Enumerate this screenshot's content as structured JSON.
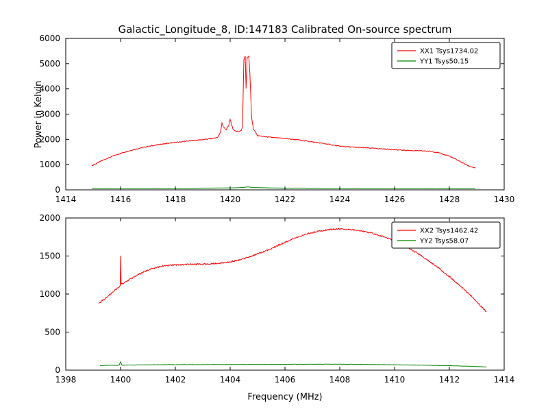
{
  "title": "Galactic_Longitude_8, ID:147183 Calibrated On-source spectrum",
  "xlabel": "Frequency (MHz)",
  "ylabel": "Power in Kelvin",
  "colors": {
    "background": "#ffffff",
    "axis": "#000000",
    "xx": "#ff0000",
    "yy": "#008000"
  },
  "chart_data": [
    {
      "type": "line",
      "position": "top",
      "xlim": [
        1414,
        1430
      ],
      "ylim": [
        0,
        6000
      ],
      "xticks": [
        1414,
        1416,
        1418,
        1420,
        1422,
        1424,
        1426,
        1428,
        1430
      ],
      "yticks": [
        0,
        1000,
        2000,
        3000,
        4000,
        5000,
        6000
      ],
      "legend_position": "upper right",
      "grid": false,
      "series": [
        {
          "name": "XX1 Tsys1734.02",
          "color": "#ff0000",
          "noise": 16,
          "points": [
            [
              1414.95,
              950
            ],
            [
              1415.3,
              1150
            ],
            [
              1415.7,
              1330
            ],
            [
              1416.1,
              1480
            ],
            [
              1416.5,
              1600
            ],
            [
              1417.0,
              1720
            ],
            [
              1417.5,
              1810
            ],
            [
              1418.0,
              1880
            ],
            [
              1418.5,
              1940
            ],
            [
              1419.0,
              1990
            ],
            [
              1419.3,
              2030
            ],
            [
              1419.55,
              2080
            ],
            [
              1419.65,
              2300
            ],
            [
              1419.7,
              2650
            ],
            [
              1419.75,
              2500
            ],
            [
              1419.85,
              2380
            ],
            [
              1419.95,
              2550
            ],
            [
              1420.0,
              2800
            ],
            [
              1420.05,
              2600
            ],
            [
              1420.1,
              2400
            ],
            [
              1420.2,
              2330
            ],
            [
              1420.3,
              2300
            ],
            [
              1420.4,
              2350
            ],
            [
              1420.45,
              2500
            ],
            [
              1420.5,
              5150
            ],
            [
              1420.55,
              5300
            ],
            [
              1420.58,
              4000
            ],
            [
              1420.62,
              5250
            ],
            [
              1420.68,
              5300
            ],
            [
              1420.72,
              4600
            ],
            [
              1420.78,
              2900
            ],
            [
              1420.85,
              2400
            ],
            [
              1421.0,
              2150
            ],
            [
              1421.3,
              2100
            ],
            [
              1421.7,
              2060
            ],
            [
              1422.0,
              2030
            ],
            [
              1422.5,
              1980
            ],
            [
              1423.0,
              1900
            ],
            [
              1423.5,
              1820
            ],
            [
              1424.0,
              1730
            ],
            [
              1424.5,
              1690
            ],
            [
              1425.0,
              1660
            ],
            [
              1425.5,
              1630
            ],
            [
              1426.0,
              1590
            ],
            [
              1426.5,
              1560
            ],
            [
              1427.0,
              1545
            ],
            [
              1427.3,
              1530
            ],
            [
              1427.6,
              1470
            ],
            [
              1428.0,
              1340
            ],
            [
              1428.4,
              1120
            ],
            [
              1428.7,
              950
            ],
            [
              1428.95,
              860
            ]
          ]
        },
        {
          "name": "YY1 Tsys50.15",
          "color": "#008000",
          "noise": 3,
          "points": [
            [
              1414.95,
              55
            ],
            [
              1416.0,
              60
            ],
            [
              1417.0,
              62
            ],
            [
              1418.0,
              65
            ],
            [
              1419.0,
              68
            ],
            [
              1419.8,
              75
            ],
            [
              1420.3,
              85
            ],
            [
              1420.5,
              100
            ],
            [
              1420.65,
              120
            ],
            [
              1420.8,
              95
            ],
            [
              1421.5,
              75
            ],
            [
              1422.0,
              70
            ],
            [
              1423.0,
              68
            ],
            [
              1424.0,
              65
            ],
            [
              1425.0,
              62
            ],
            [
              1426.0,
              60
            ],
            [
              1427.0,
              58
            ],
            [
              1428.0,
              55
            ],
            [
              1428.95,
              50
            ]
          ]
        }
      ]
    },
    {
      "type": "line",
      "position": "bottom",
      "xlim": [
        1398,
        1414
      ],
      "ylim": [
        0,
        2000
      ],
      "xticks": [
        1398,
        1400,
        1402,
        1404,
        1406,
        1408,
        1410,
        1412,
        1414
      ],
      "yticks": [
        0,
        500,
        1000,
        1500,
        2000
      ],
      "legend_position": "upper right",
      "grid": false,
      "series": [
        {
          "name": "XX2 Tsys1462.42",
          "color": "#ff0000",
          "noise": 9,
          "points": [
            [
              1399.2,
              880
            ],
            [
              1399.4,
              930
            ],
            [
              1399.6,
              990
            ],
            [
              1399.8,
              1050
            ],
            [
              1399.95,
              1095
            ],
            [
              1399.99,
              1110
            ],
            [
              1400.0,
              1500
            ],
            [
              1400.02,
              1130
            ],
            [
              1400.1,
              1140
            ],
            [
              1400.3,
              1185
            ],
            [
              1400.6,
              1245
            ],
            [
              1400.9,
              1300
            ],
            [
              1401.2,
              1340
            ],
            [
              1401.5,
              1365
            ],
            [
              1401.8,
              1378
            ],
            [
              1402.1,
              1385
            ],
            [
              1402.5,
              1390
            ],
            [
              1402.9,
              1393
            ],
            [
              1403.3,
              1398
            ],
            [
              1403.7,
              1408
            ],
            [
              1404.0,
              1425
            ],
            [
              1404.4,
              1455
            ],
            [
              1404.8,
              1500
            ],
            [
              1405.2,
              1555
            ],
            [
              1405.6,
              1615
            ],
            [
              1406.0,
              1680
            ],
            [
              1406.4,
              1740
            ],
            [
              1406.8,
              1790
            ],
            [
              1407.2,
              1825
            ],
            [
              1407.6,
              1848
            ],
            [
              1408.0,
              1855
            ],
            [
              1408.4,
              1848
            ],
            [
              1408.8,
              1830
            ],
            [
              1409.2,
              1798
            ],
            [
              1409.6,
              1755
            ],
            [
              1410.0,
              1700
            ],
            [
              1410.4,
              1630
            ],
            [
              1410.8,
              1545
            ],
            [
              1411.2,
              1450
            ],
            [
              1411.6,
              1345
            ],
            [
              1412.0,
              1230
            ],
            [
              1412.4,
              1105
            ],
            [
              1412.8,
              975
            ],
            [
              1413.1,
              860
            ],
            [
              1413.35,
              765
            ]
          ]
        },
        {
          "name": "YY2 Tsys58.07",
          "color": "#008000",
          "noise": 2,
          "points": [
            [
              1399.25,
              60
            ],
            [
              1399.6,
              63
            ],
            [
              1399.95,
              65
            ],
            [
              1400.0,
              110
            ],
            [
              1400.05,
              66
            ],
            [
              1400.5,
              68
            ],
            [
              1401.0,
              70
            ],
            [
              1402.0,
              72
            ],
            [
              1403.0,
              73
            ],
            [
              1404.0,
              74
            ],
            [
              1405.0,
              75
            ],
            [
              1406.0,
              76
            ],
            [
              1407.0,
              78
            ],
            [
              1408.0,
              78
            ],
            [
              1409.0,
              75
            ],
            [
              1410.0,
              70
            ],
            [
              1411.0,
              65
            ],
            [
              1412.0,
              58
            ],
            [
              1412.8,
              50
            ],
            [
              1413.35,
              42
            ]
          ]
        }
      ]
    }
  ]
}
